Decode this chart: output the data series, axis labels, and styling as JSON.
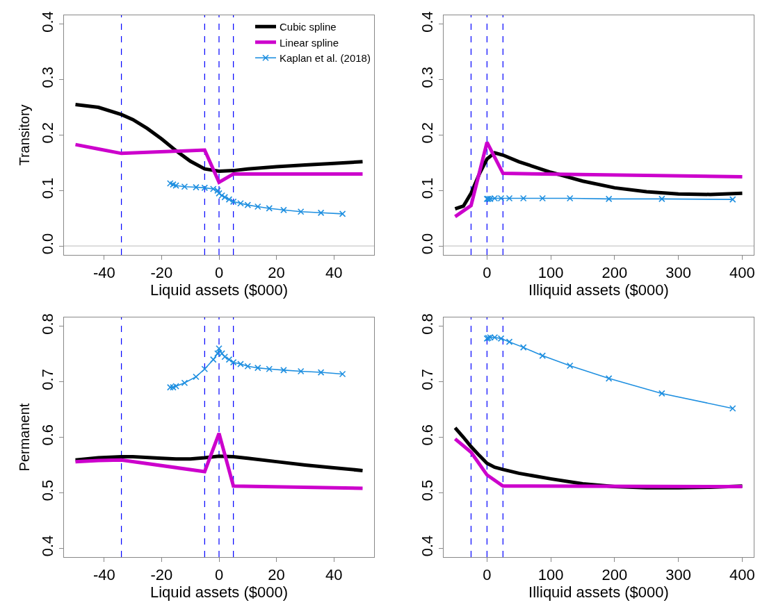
{
  "chart_data": [
    {
      "type": "line",
      "xlabel": "Liquid assets ($000)",
      "ylabel": "Transitory",
      "xlim": [
        -54,
        54
      ],
      "ylim": [
        -0.016,
        0.416
      ],
      "xticks": [
        -40,
        -20,
        0,
        20,
        40
      ],
      "yticks": [
        {
          "value": 0,
          "label": "0.0"
        },
        0.1,
        0.2,
        0.3,
        0.4
      ],
      "legend": "top right",
      "ref_lines": [
        {
          "axis": "x",
          "value": -34,
          "color": "#0000ff",
          "line_style": "dashed"
        },
        {
          "axis": "x",
          "value": -5,
          "color": "#0000ff",
          "line_style": "dashed"
        },
        {
          "axis": "x",
          "value": 0,
          "color": "#0000ff",
          "line_style": "dashed"
        },
        {
          "axis": "x",
          "value": 5,
          "color": "#0000ff",
          "line_style": "dashed"
        },
        {
          "axis": "y",
          "value": 0,
          "color": "#c8c8c8",
          "line_style": "solid"
        }
      ],
      "series": [
        {
          "name": "Cubic spline",
          "color": "#000000",
          "x": [
            -50,
            -42,
            -34,
            -30,
            -25,
            -20,
            -15,
            -10,
            -5,
            0,
            5,
            10,
            20,
            30,
            40,
            50
          ],
          "values": [
            0.255,
            0.25,
            0.237,
            0.228,
            0.212,
            0.193,
            0.172,
            0.153,
            0.139,
            0.135,
            0.136,
            0.139,
            0.143,
            0.146,
            0.149,
            0.152
          ]
        },
        {
          "name": "Linear spline",
          "color": "#cc00cc",
          "x": [
            -50,
            -42,
            -34,
            -5,
            0,
            5,
            50
          ],
          "values": [
            0.183,
            0.175,
            0.167,
            0.173,
            0.115,
            0.13,
            0.13
          ]
        },
        {
          "name": "Kaplan et al. (2018)",
          "color": "#1e8fe0",
          "marker": "cross",
          "x": [
            -17,
            -16,
            -15,
            -12,
            -8,
            -5,
            -2,
            -0.5,
            0,
            1,
            2,
            3.5,
            5,
            7.5,
            10,
            13.5,
            17.5,
            22.5,
            28.5,
            35.5,
            43
          ],
          "values": [
            0.113,
            0.111,
            0.109,
            0.107,
            0.106,
            0.105,
            0.103,
            0.1,
            0.095,
            0.091,
            0.088,
            0.084,
            0.08,
            0.077,
            0.074,
            0.071,
            0.068,
            0.065,
            0.062,
            0.06,
            0.058
          ]
        }
      ]
    },
    {
      "type": "line",
      "xlabel": "Illiquid assets ($000)",
      "xlim": [
        -68,
        418
      ],
      "ylim": [
        -0.016,
        0.416
      ],
      "xticks": [
        0,
        100,
        200,
        300,
        400
      ],
      "yticks": [
        {
          "value": 0,
          "label": "0.0"
        },
        0.1,
        0.2,
        0.3,
        0.4
      ],
      "ref_lines": [
        {
          "axis": "x",
          "value": -25,
          "color": "#0000ff",
          "line_style": "dashed"
        },
        {
          "axis": "x",
          "value": 0,
          "color": "#0000ff",
          "line_style": "dashed"
        },
        {
          "axis": "x",
          "value": 25,
          "color": "#0000ff",
          "line_style": "dashed"
        },
        {
          "axis": "y",
          "value": 0,
          "color": "#c8c8c8",
          "line_style": "solid"
        }
      ],
      "series": [
        {
          "color": "#000000",
          "x": [
            -50,
            -37,
            -25,
            -12,
            0,
            12,
            25,
            50,
            100,
            150,
            200,
            250,
            300,
            350,
            400
          ],
          "values": [
            0.067,
            0.072,
            0.095,
            0.13,
            0.157,
            0.168,
            0.164,
            0.152,
            0.133,
            0.117,
            0.105,
            0.098,
            0.094,
            0.093,
            0.095
          ]
        },
        {
          "color": "#cc00cc",
          "x": [
            -50,
            -25,
            0,
            25,
            400
          ],
          "values": [
            0.053,
            0.073,
            0.187,
            0.131,
            0.125
          ]
        },
        {
          "color": "#1e8fe0",
          "marker": "cross",
          "x": [
            0,
            2,
            5,
            12,
            22,
            35,
            57,
            87,
            130,
            191,
            274,
            385
          ],
          "values": [
            0.085,
            0.085,
            0.085,
            0.086,
            0.086,
            0.086,
            0.086,
            0.086,
            0.086,
            0.085,
            0.085,
            0.084
          ]
        }
      ]
    },
    {
      "type": "line",
      "xlabel": "Liquid assets ($000)",
      "ylabel": "Permanent",
      "xlim": [
        -54,
        54
      ],
      "ylim": [
        0.384,
        0.816
      ],
      "xticks": [
        -40,
        -20,
        0,
        20,
        40
      ],
      "yticks": [
        0.4,
        0.5,
        0.6,
        0.7,
        0.8
      ],
      "ref_lines": [
        {
          "axis": "x",
          "value": -34,
          "color": "#0000ff",
          "line_style": "dashed"
        },
        {
          "axis": "x",
          "value": -5,
          "color": "#0000ff",
          "line_style": "dashed"
        },
        {
          "axis": "x",
          "value": 0,
          "color": "#0000ff",
          "line_style": "dashed"
        },
        {
          "axis": "x",
          "value": 5,
          "color": "#0000ff",
          "line_style": "dashed"
        }
      ],
      "series": [
        {
          "color": "#000000",
          "x": [
            -50,
            -42,
            -34,
            -30,
            -20,
            -15,
            -10,
            -5,
            0,
            5,
            10,
            20,
            30,
            40,
            50
          ],
          "values": [
            0.559,
            0.563,
            0.565,
            0.565,
            0.562,
            0.561,
            0.561,
            0.563,
            0.566,
            0.565,
            0.562,
            0.556,
            0.55,
            0.545,
            0.54
          ]
        },
        {
          "color": "#cc00cc",
          "x": [
            -50,
            -42,
            -34,
            -5,
            0,
            5,
            50
          ],
          "values": [
            0.556,
            0.558,
            0.559,
            0.538,
            0.607,
            0.512,
            0.508
          ]
        },
        {
          "color": "#1e8fe0",
          "marker": "cross",
          "x": [
            -17,
            -16,
            -15,
            -12,
            -8,
            -5,
            -2,
            -0.5,
            0,
            1,
            2,
            3.5,
            5,
            7.5,
            10,
            13.5,
            17.5,
            22.5,
            28.5,
            35.5,
            43
          ],
          "values": [
            0.69,
            0.69,
            0.692,
            0.698,
            0.709,
            0.723,
            0.74,
            0.751,
            0.76,
            0.751,
            0.745,
            0.74,
            0.735,
            0.732,
            0.728,
            0.725,
            0.723,
            0.721,
            0.719,
            0.717,
            0.714
          ]
        }
      ]
    },
    {
      "type": "line",
      "xlabel": "Illiquid assets ($000)",
      "xlim": [
        -68,
        418
      ],
      "ylim": [
        0.384,
        0.816
      ],
      "xticks": [
        0,
        100,
        200,
        300,
        400
      ],
      "yticks": [
        0.4,
        0.5,
        0.6,
        0.7,
        0.8
      ],
      "ref_lines": [
        {
          "axis": "x",
          "value": -25,
          "color": "#0000ff",
          "line_style": "dashed"
        },
        {
          "axis": "x",
          "value": 0,
          "color": "#0000ff",
          "line_style": "dashed"
        },
        {
          "axis": "x",
          "value": 25,
          "color": "#0000ff",
          "line_style": "dashed"
        }
      ],
      "series": [
        {
          "color": "#000000",
          "x": [
            -50,
            -37,
            -25,
            -12,
            0,
            12,
            25,
            50,
            100,
            150,
            200,
            250,
            300,
            350,
            400
          ],
          "values": [
            0.617,
            0.6,
            0.583,
            0.567,
            0.553,
            0.546,
            0.542,
            0.535,
            0.525,
            0.516,
            0.511,
            0.509,
            0.509,
            0.51,
            0.512
          ]
        },
        {
          "color": "#cc00cc",
          "x": [
            -50,
            -25,
            0,
            25,
            400
          ],
          "values": [
            0.597,
            0.573,
            0.532,
            0.512,
            0.511
          ]
        },
        {
          "color": "#1e8fe0",
          "marker": "cross",
          "x": [
            0,
            2,
            5,
            12,
            22,
            35,
            57,
            87,
            130,
            191,
            274,
            385
          ],
          "values": [
            0.778,
            0.779,
            0.78,
            0.78,
            0.778,
            0.772,
            0.762,
            0.747,
            0.729,
            0.706,
            0.679,
            0.652
          ]
        }
      ]
    }
  ]
}
